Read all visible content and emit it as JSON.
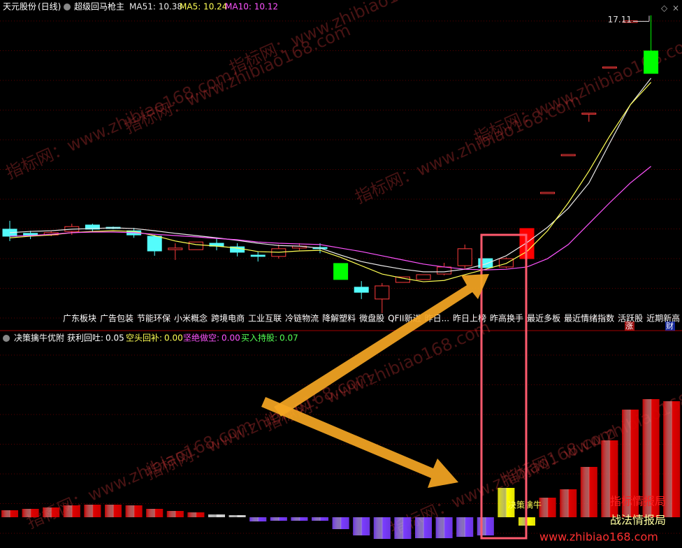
{
  "header": {
    "stock": "天元股份",
    "period": "(日线)"
  },
  "watermark": "指标网：www.zhibiao168.com",
  "branding": {
    "line1": "指标情报局",
    "line2": "战法情报局",
    "url": "www.zhibiao168.com"
  },
  "chart_data": [
    {
      "type": "candlestick",
      "title": "超级回马枪主",
      "ylim": [
        7.35,
        17.6
      ],
      "open": [
        10.45,
        10.32,
        10.27,
        10.38,
        10.58,
        10.51,
        10.4,
        10.23,
        9.81,
        9.81,
        10.01,
        9.9,
        9.64,
        9.6,
        9.86,
        9.88,
        9.38,
        8.64,
        8.27,
        8.79,
        8.88,
        9.05,
        9.31,
        9.53,
        9.27,
        9.53,
        11.56,
        12.74,
        14.07,
        15.51,
        16.9,
        16.01
      ],
      "high": [
        10.71,
        10.4,
        10.38,
        10.62,
        10.62,
        10.53,
        10.49,
        10.27,
        10.01,
        10.05,
        10.18,
        10.01,
        9.75,
        9.97,
        10.01,
        10.01,
        9.38,
        8.83,
        8.77,
        8.96,
        9.03,
        9.4,
        9.97,
        9.53,
        9.57,
        10.47,
        11.6,
        12.78,
        14.07,
        15.51,
        16.95,
        17.12
      ],
      "low": [
        10.08,
        10.14,
        10.23,
        10.27,
        10.38,
        10.45,
        10.18,
        9.62,
        9.49,
        9.81,
        9.79,
        9.6,
        9.44,
        9.53,
        9.79,
        9.7,
        8.88,
        8.27,
        7.83,
        8.79,
        8.88,
        9.01,
        9.18,
        9.25,
        9.23,
        9.53,
        11.56,
        12.74,
        13.8,
        15.51,
        16.9,
        15.31
      ],
      "close": [
        10.23,
        10.25,
        10.34,
        10.53,
        10.45,
        10.47,
        10.27,
        9.77,
        9.86,
        10.05,
        9.92,
        9.73,
        9.6,
        9.84,
        9.92,
        9.84,
        8.88,
        8.48,
        8.68,
        8.96,
        9.03,
        9.27,
        9.84,
        9.25,
        9.53,
        10.47,
        11.6,
        12.78,
        14.07,
        15.51,
        16.95,
        15.31
      ],
      "colors": [
        "#54fcfc",
        "#54fcfc",
        "#ff3c3c",
        "#ff3c3c",
        "#54fcfc",
        "#54fcfc",
        "#54fcfc",
        "#54fcfc",
        "#ff3c3c",
        "#ff3c3c",
        "#54fcfc",
        "#54fcfc",
        "#54fcfc",
        "#ff3c3c",
        "#ff3c3c",
        "#54fcfc",
        "#00ff00",
        "#54fcfc",
        "#ff3c3c",
        "#ff3c3c",
        "#ff3c3c",
        "#ff3c3c",
        "#ff3c3c",
        "#54fcfc",
        "#ff3c3c",
        "#ff0000",
        "#ff3c3c",
        "#ff3c3c",
        "#ff3c3c",
        "#ff3c3c",
        "#ff3c3c",
        "#00ff00"
      ],
      "hollow_color": "#ff3c3c",
      "series": [
        {
          "name": "MA51: 10.38",
          "color": "#e8e8e8",
          "values": [
            10.34,
            10.38,
            10.4,
            10.45,
            10.47,
            10.49,
            10.47,
            10.4,
            10.32,
            10.25,
            10.18,
            10.1,
            10.01,
            9.94,
            9.92,
            9.86,
            9.64,
            9.44,
            9.31,
            9.2,
            9.12,
            9.12,
            9.2,
            9.36,
            9.62,
            10.03,
            10.51,
            11.1,
            11.89,
            13.13,
            14.33,
            15.16
          ]
        },
        {
          "name": "MA5: 10.24",
          "color": "#ffff54",
          "values": [
            10.18,
            10.23,
            10.27,
            10.34,
            10.38,
            10.4,
            10.38,
            10.25,
            10.08,
            9.97,
            9.92,
            9.86,
            9.75,
            9.73,
            9.77,
            9.79,
            9.57,
            9.31,
            9.05,
            8.92,
            8.81,
            8.85,
            9.03,
            9.2,
            9.38,
            9.75,
            10.4,
            11.27,
            12.26,
            13.35,
            14.33,
            15.03
          ]
        },
        {
          "name": "MA10: 10.12",
          "color": "#ff54ff",
          "values": [
            10.23,
            10.25,
            10.29,
            10.34,
            10.36,
            10.36,
            10.34,
            10.29,
            10.25,
            10.21,
            10.16,
            10.12,
            10.05,
            10.01,
            9.99,
            9.97,
            9.86,
            9.75,
            9.62,
            9.49,
            9.36,
            9.27,
            9.2,
            9.18,
            9.2,
            9.27,
            9.53,
            9.97,
            10.62,
            11.27,
            11.89,
            12.41
          ]
        }
      ],
      "high_label": 17.11,
      "tags": [
        "广东板块",
        "广告包装",
        "节能环保",
        "小米概念",
        "跨境电商",
        "工业互联",
        "冷链物流",
        "降解塑料",
        "微盘股",
        "QFII新进",
        "昨日...",
        "昨日上榜",
        "昨高换手",
        "最近多板",
        "最近情绪指数",
        "活跃股",
        "近期新高",
        "活跃"
      ],
      "tag_marks": [
        "涨",
        "财"
      ]
    },
    {
      "type": "bar",
      "title": "决策擒牛优附",
      "legend": [
        {
          "label": "获利回吐:",
          "value": "0.05",
          "color": "#ffffff"
        },
        {
          "label": "空头回补:",
          "value": "0.00",
          "color": "#ffff54"
        },
        {
          "label": "坚绝做空:",
          "value": "0.00",
          "color": "#ff54ff"
        },
        {
          "label": "买入持股:",
          "value": "0.07",
          "color": "#54ff54"
        }
      ],
      "ylim": [
        -0.3,
        2.6
      ],
      "values": [
        0.1,
        0.12,
        0.14,
        0.17,
        0.18,
        0.18,
        0.17,
        0.12,
        0.09,
        0.07,
        0.04,
        0.03,
        -0.06,
        -0.05,
        -0.05,
        -0.05,
        -0.17,
        -0.26,
        -0.31,
        -0.31,
        -0.3,
        -0.3,
        -0.28,
        -0.26,
        0.42,
        -0.12,
        0.28,
        0.4,
        0.72,
        1.1,
        1.54,
        1.69,
        1.66
      ],
      "colors": [
        "#e00000",
        "#e00000",
        "#e00000",
        "#e00000",
        "#e00000",
        "#e00000",
        "#e00000",
        "#e00000",
        "#e00000",
        "#e00000",
        "#dddddd",
        "#dddddd",
        "#7a3cff",
        "#7a3cff",
        "#7a3cff",
        "#7a3cff",
        "#7a3cff",
        "#7a3cff",
        "#7a3cff",
        "#7a3cff",
        "#7a3cff",
        "#7a3cff",
        "#7a3cff",
        "#7a3cff",
        "#ffff00",
        "#ffff00",
        "#e00000",
        "#e00000",
        "#e00000",
        "#e00000",
        "#e00000",
        "#e00000",
        "#e00000"
      ],
      "annotation": "决策擒牛"
    }
  ]
}
